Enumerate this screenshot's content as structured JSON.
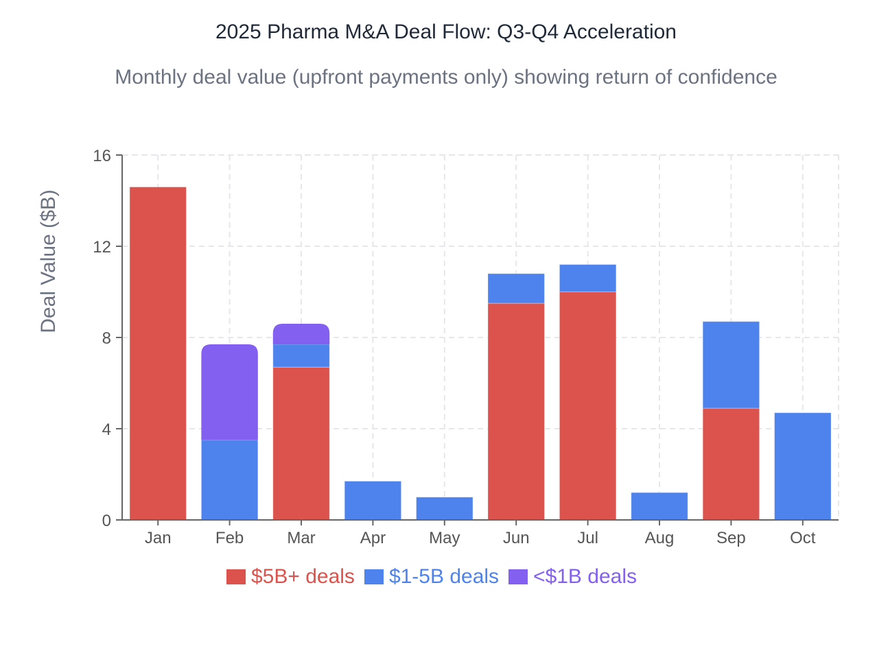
{
  "chart_data": {
    "type": "bar",
    "stacked": true,
    "title": "2025 Pharma M&A Deal Flow: Q3-Q4 Acceleration",
    "subtitle": "Monthly deal value (upfront payments only) showing return of confidence",
    "xlabel": "",
    "ylabel": "Deal Value ($B)",
    "ylim": [
      0,
      16
    ],
    "yticks": [
      0,
      4,
      8,
      12,
      16
    ],
    "grid": true,
    "legend_position": "bottom",
    "categories": [
      "Jan",
      "Feb",
      "Mar",
      "Apr",
      "May",
      "Jun",
      "Jul",
      "Aug",
      "Sep",
      "Oct"
    ],
    "series": [
      {
        "name": "$5B+ deals",
        "color": "#dc524c",
        "values": [
          14.6,
          0,
          6.7,
          0,
          0,
          9.5,
          10.0,
          0,
          4.9,
          0
        ]
      },
      {
        "name": "$1-5B deals",
        "color": "#4e82ec",
        "values": [
          0,
          3.5,
          1.0,
          1.7,
          1.0,
          1.3,
          1.2,
          1.2,
          3.8,
          4.7
        ]
      },
      {
        "name": "<$1B deals",
        "color": "#8360ef",
        "values": [
          0,
          4.2,
          0.9,
          0,
          0,
          0,
          0,
          0,
          0,
          0
        ]
      }
    ]
  }
}
